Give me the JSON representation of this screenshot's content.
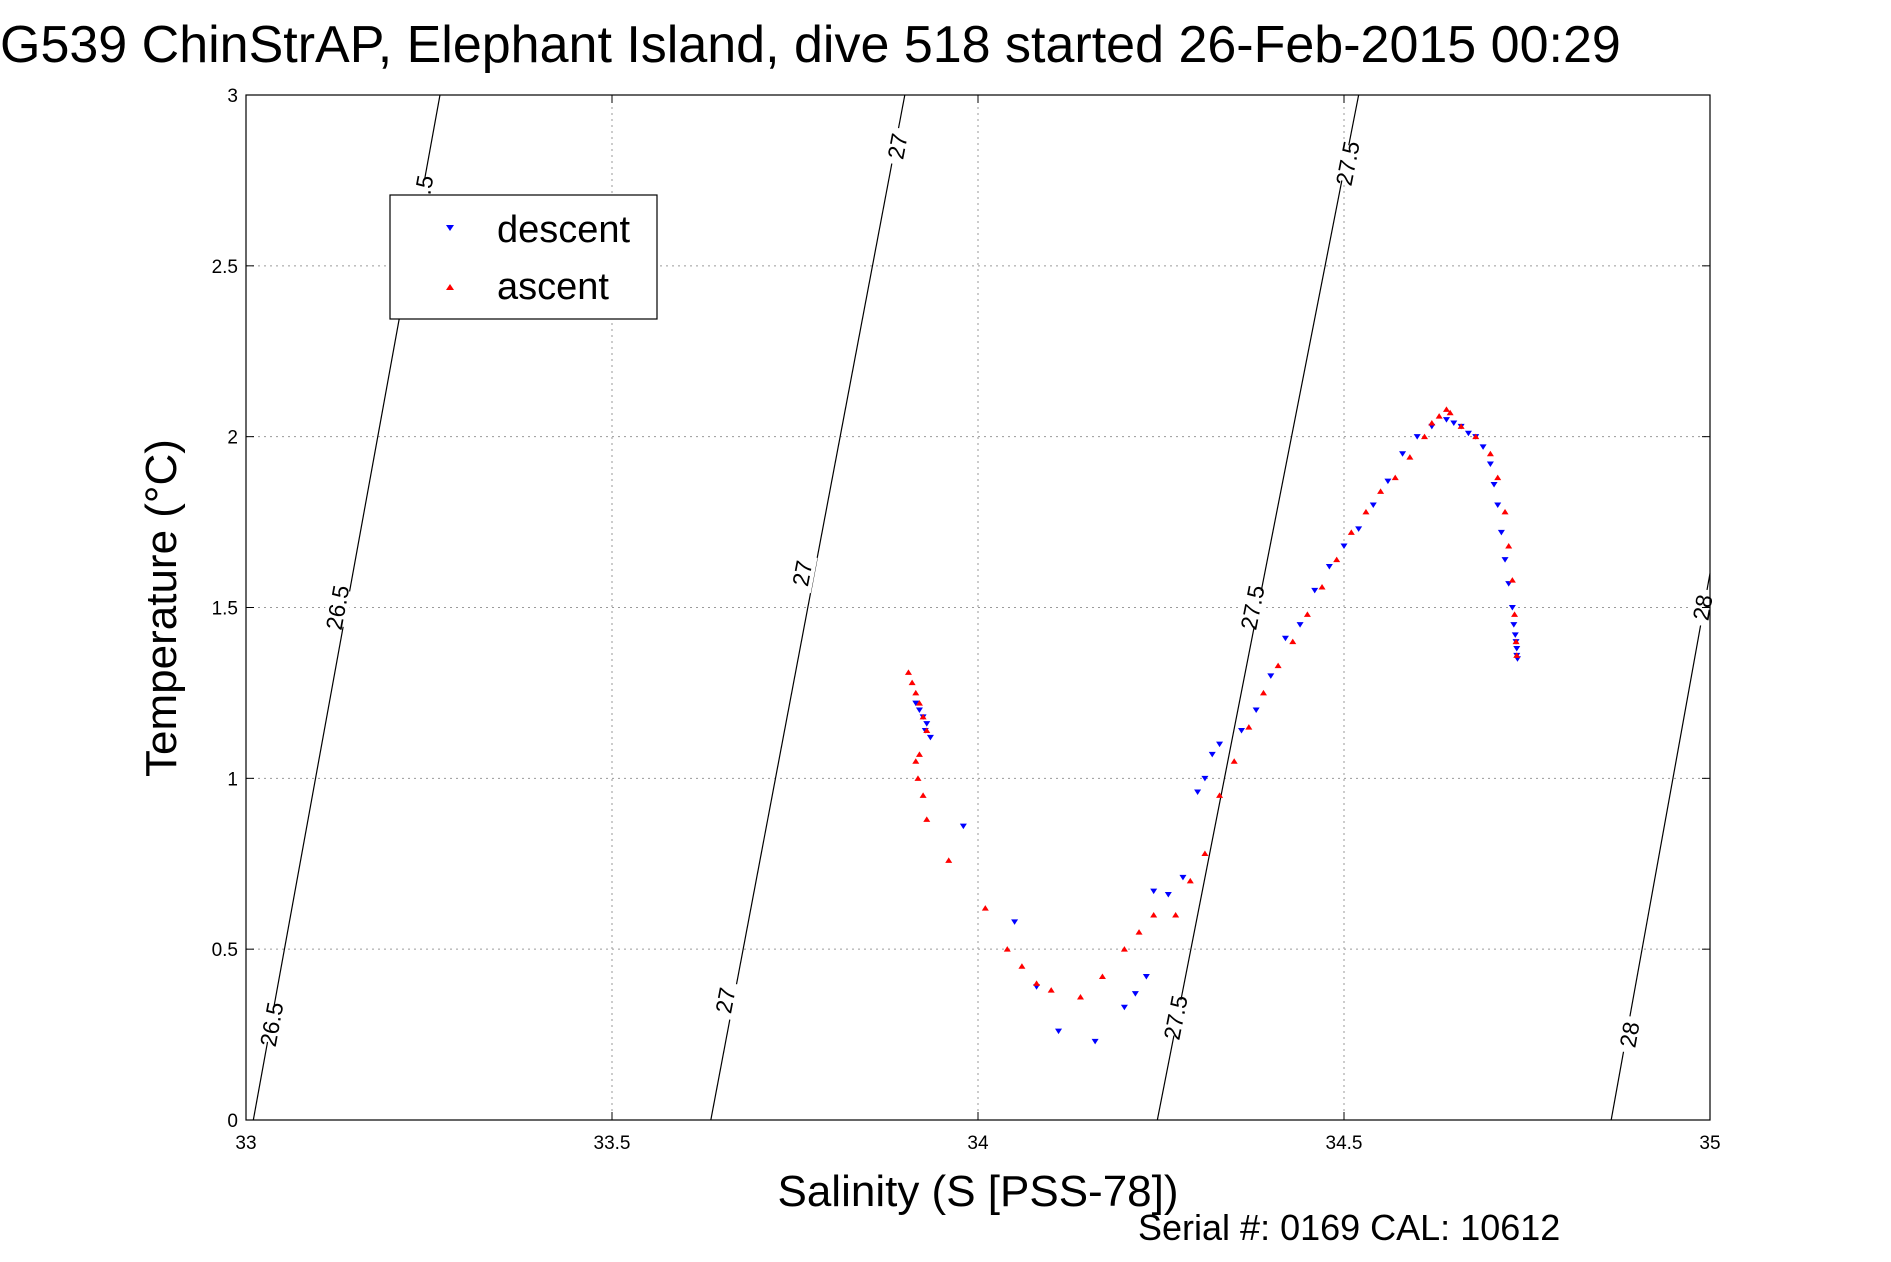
{
  "chart_data": {
    "type": "scatter",
    "title": "G539 ChinStrAP, Elephant Island, dive 518 started 26-Feb-2015 00:29",
    "xlabel": "Salinity (S [PSS-78])",
    "ylabel": "Temperature (°C)",
    "footnote": "Serial #: 0169 CAL: 10612",
    "xlim": [
      33,
      35
    ],
    "ylim": [
      0,
      3
    ],
    "x_ticks": [
      "33",
      "33.5",
      "34",
      "34.5",
      "35"
    ],
    "y_ticks": [
      "0",
      "0.5",
      "1",
      "1.5",
      "2",
      "2.5",
      "3"
    ],
    "grid": true,
    "legend_position": "top-left",
    "density_contours": [
      {
        "level": "26.5",
        "points": [
          [
            33.01,
            0
          ],
          [
            33.265,
            3
          ]
        ],
        "label_points": [
          [
            33.035,
            0.28
          ],
          [
            33.125,
            1.5
          ],
          [
            33.24,
            2.7
          ]
        ]
      },
      {
        "level": "27",
        "points": [
          [
            33.635,
            0
          ],
          [
            33.9,
            3
          ]
        ],
        "label_points": [
          [
            33.655,
            0.35
          ],
          [
            33.76,
            1.6
          ],
          [
            33.89,
            2.85
          ]
        ]
      },
      {
        "level": "27.5",
        "points": [
          [
            34.245,
            0
          ],
          [
            34.52,
            3
          ]
        ],
        "label_points": [
          [
            34.27,
            0.3
          ],
          [
            34.375,
            1.5
          ],
          [
            34.505,
            2.8
          ]
        ]
      },
      {
        "level": "28",
        "points": [
          [
            34.865,
            0
          ],
          [
            35.0,
            1.6
          ]
        ],
        "label_points": [
          [
            34.89,
            0.25
          ],
          [
            34.99,
            1.5
          ]
        ]
      }
    ],
    "series": [
      {
        "name": "descent",
        "color": "#0000ff",
        "marker": "triangle-down",
        "x": [
          33.915,
          33.92,
          33.925,
          33.93,
          33.935,
          33.928,
          33.98,
          34.05,
          34.08,
          34.11,
          34.16,
          34.2,
          34.215,
          34.23,
          34.24,
          34.26,
          34.28,
          34.3,
          34.31,
          34.32,
          34.33,
          34.36,
          34.38,
          34.4,
          34.42,
          34.44,
          34.46,
          34.48,
          34.5,
          34.52,
          34.54,
          34.56,
          34.58,
          34.6,
          34.62,
          34.64,
          34.65,
          34.66,
          34.67,
          34.68,
          34.69,
          34.7,
          34.705,
          34.71,
          34.715,
          34.72,
          34.725,
          34.73,
          34.732,
          34.734,
          34.735,
          34.736,
          34.736,
          34.737
        ],
        "y": [
          1.22,
          1.2,
          1.18,
          1.16,
          1.12,
          1.14,
          0.86,
          0.58,
          0.39,
          0.26,
          0.23,
          0.33,
          0.37,
          0.42,
          0.67,
          0.66,
          0.71,
          0.96,
          1.0,
          1.07,
          1.1,
          1.14,
          1.2,
          1.3,
          1.41,
          1.45,
          1.55,
          1.62,
          1.68,
          1.73,
          1.8,
          1.87,
          1.95,
          2.0,
          2.03,
          2.05,
          2.04,
          2.03,
          2.01,
          2.0,
          1.97,
          1.92,
          1.86,
          1.8,
          1.72,
          1.64,
          1.57,
          1.5,
          1.45,
          1.42,
          1.4,
          1.38,
          1.36,
          1.35
        ]
      },
      {
        "name": "ascent",
        "color": "#ff0000",
        "marker": "triangle-up",
        "x": [
          33.905,
          33.91,
          33.915,
          33.92,
          33.925,
          33.93,
          33.92,
          33.915,
          33.918,
          33.925,
          33.93,
          33.96,
          34.01,
          34.04,
          34.06,
          34.08,
          34.1,
          34.14,
          34.17,
          34.2,
          34.22,
          34.24,
          34.27,
          34.29,
          34.31,
          34.33,
          34.35,
          34.37,
          34.39,
          34.41,
          34.43,
          34.45,
          34.47,
          34.49,
          34.51,
          34.53,
          34.55,
          34.57,
          34.59,
          34.61,
          34.62,
          34.63,
          34.64,
          34.645,
          34.66,
          34.68,
          34.7,
          34.71,
          34.72,
          34.725,
          34.73,
          34.733,
          34.735,
          34.736
        ],
        "y": [
          1.31,
          1.28,
          1.25,
          1.22,
          1.18,
          1.14,
          1.07,
          1.05,
          1.0,
          0.95,
          0.88,
          0.76,
          0.62,
          0.5,
          0.45,
          0.4,
          0.38,
          0.36,
          0.42,
          0.5,
          0.55,
          0.6,
          0.6,
          0.7,
          0.78,
          0.95,
          1.05,
          1.15,
          1.25,
          1.33,
          1.4,
          1.48,
          1.56,
          1.64,
          1.72,
          1.78,
          1.84,
          1.88,
          1.94,
          2.0,
          2.04,
          2.06,
          2.08,
          2.07,
          2.03,
          2.0,
          1.95,
          1.88,
          1.78,
          1.68,
          1.58,
          1.48,
          1.4,
          1.36
        ]
      }
    ]
  }
}
